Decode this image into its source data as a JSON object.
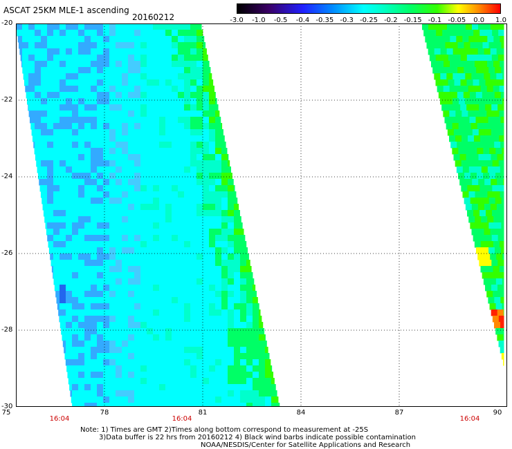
{
  "header": {
    "title": "ASCAT 25KM MLE-1 ascending",
    "date": "20160212"
  },
  "colorbar": {
    "labels": [
      "-3.0",
      "-1.0",
      "-0.5",
      "-0.4",
      "-0.35",
      "-0.3",
      "-0.25",
      "-0.2",
      "-0.15",
      "-0.1",
      "-0.05",
      "0.0",
      "1.0"
    ]
  },
  "axes": {
    "y_ticks": [
      "-20",
      "-22",
      "-24",
      "-26",
      "-28",
      "-30"
    ],
    "x_ticks": [
      "75",
      "78",
      "81",
      "84",
      "87",
      "90"
    ],
    "times": [
      "16:04",
      "16:04",
      "16:04"
    ]
  },
  "colors": {
    "deep_blue": "#2266ee",
    "blue": "#33aaff",
    "light_blue": "#44ccff",
    "cyan": "#00ffff",
    "aqua": "#00ffcc",
    "green": "#00ff66",
    "bright_green": "#33ff00",
    "yellow": "#ffff00",
    "orange": "#ff8800",
    "red": "#ff2200"
  },
  "notes": {
    "line1": "Note: 1) Times are GMT 2)Times along bottom correspond to measurement at -25S",
    "line2": "3)Data buffer is 22 hrs from 20160212 4) Black wind barbs indicate possible contamination",
    "line3": "NOAA/NESDIS/Center for Satellite Applications and Research"
  }
}
